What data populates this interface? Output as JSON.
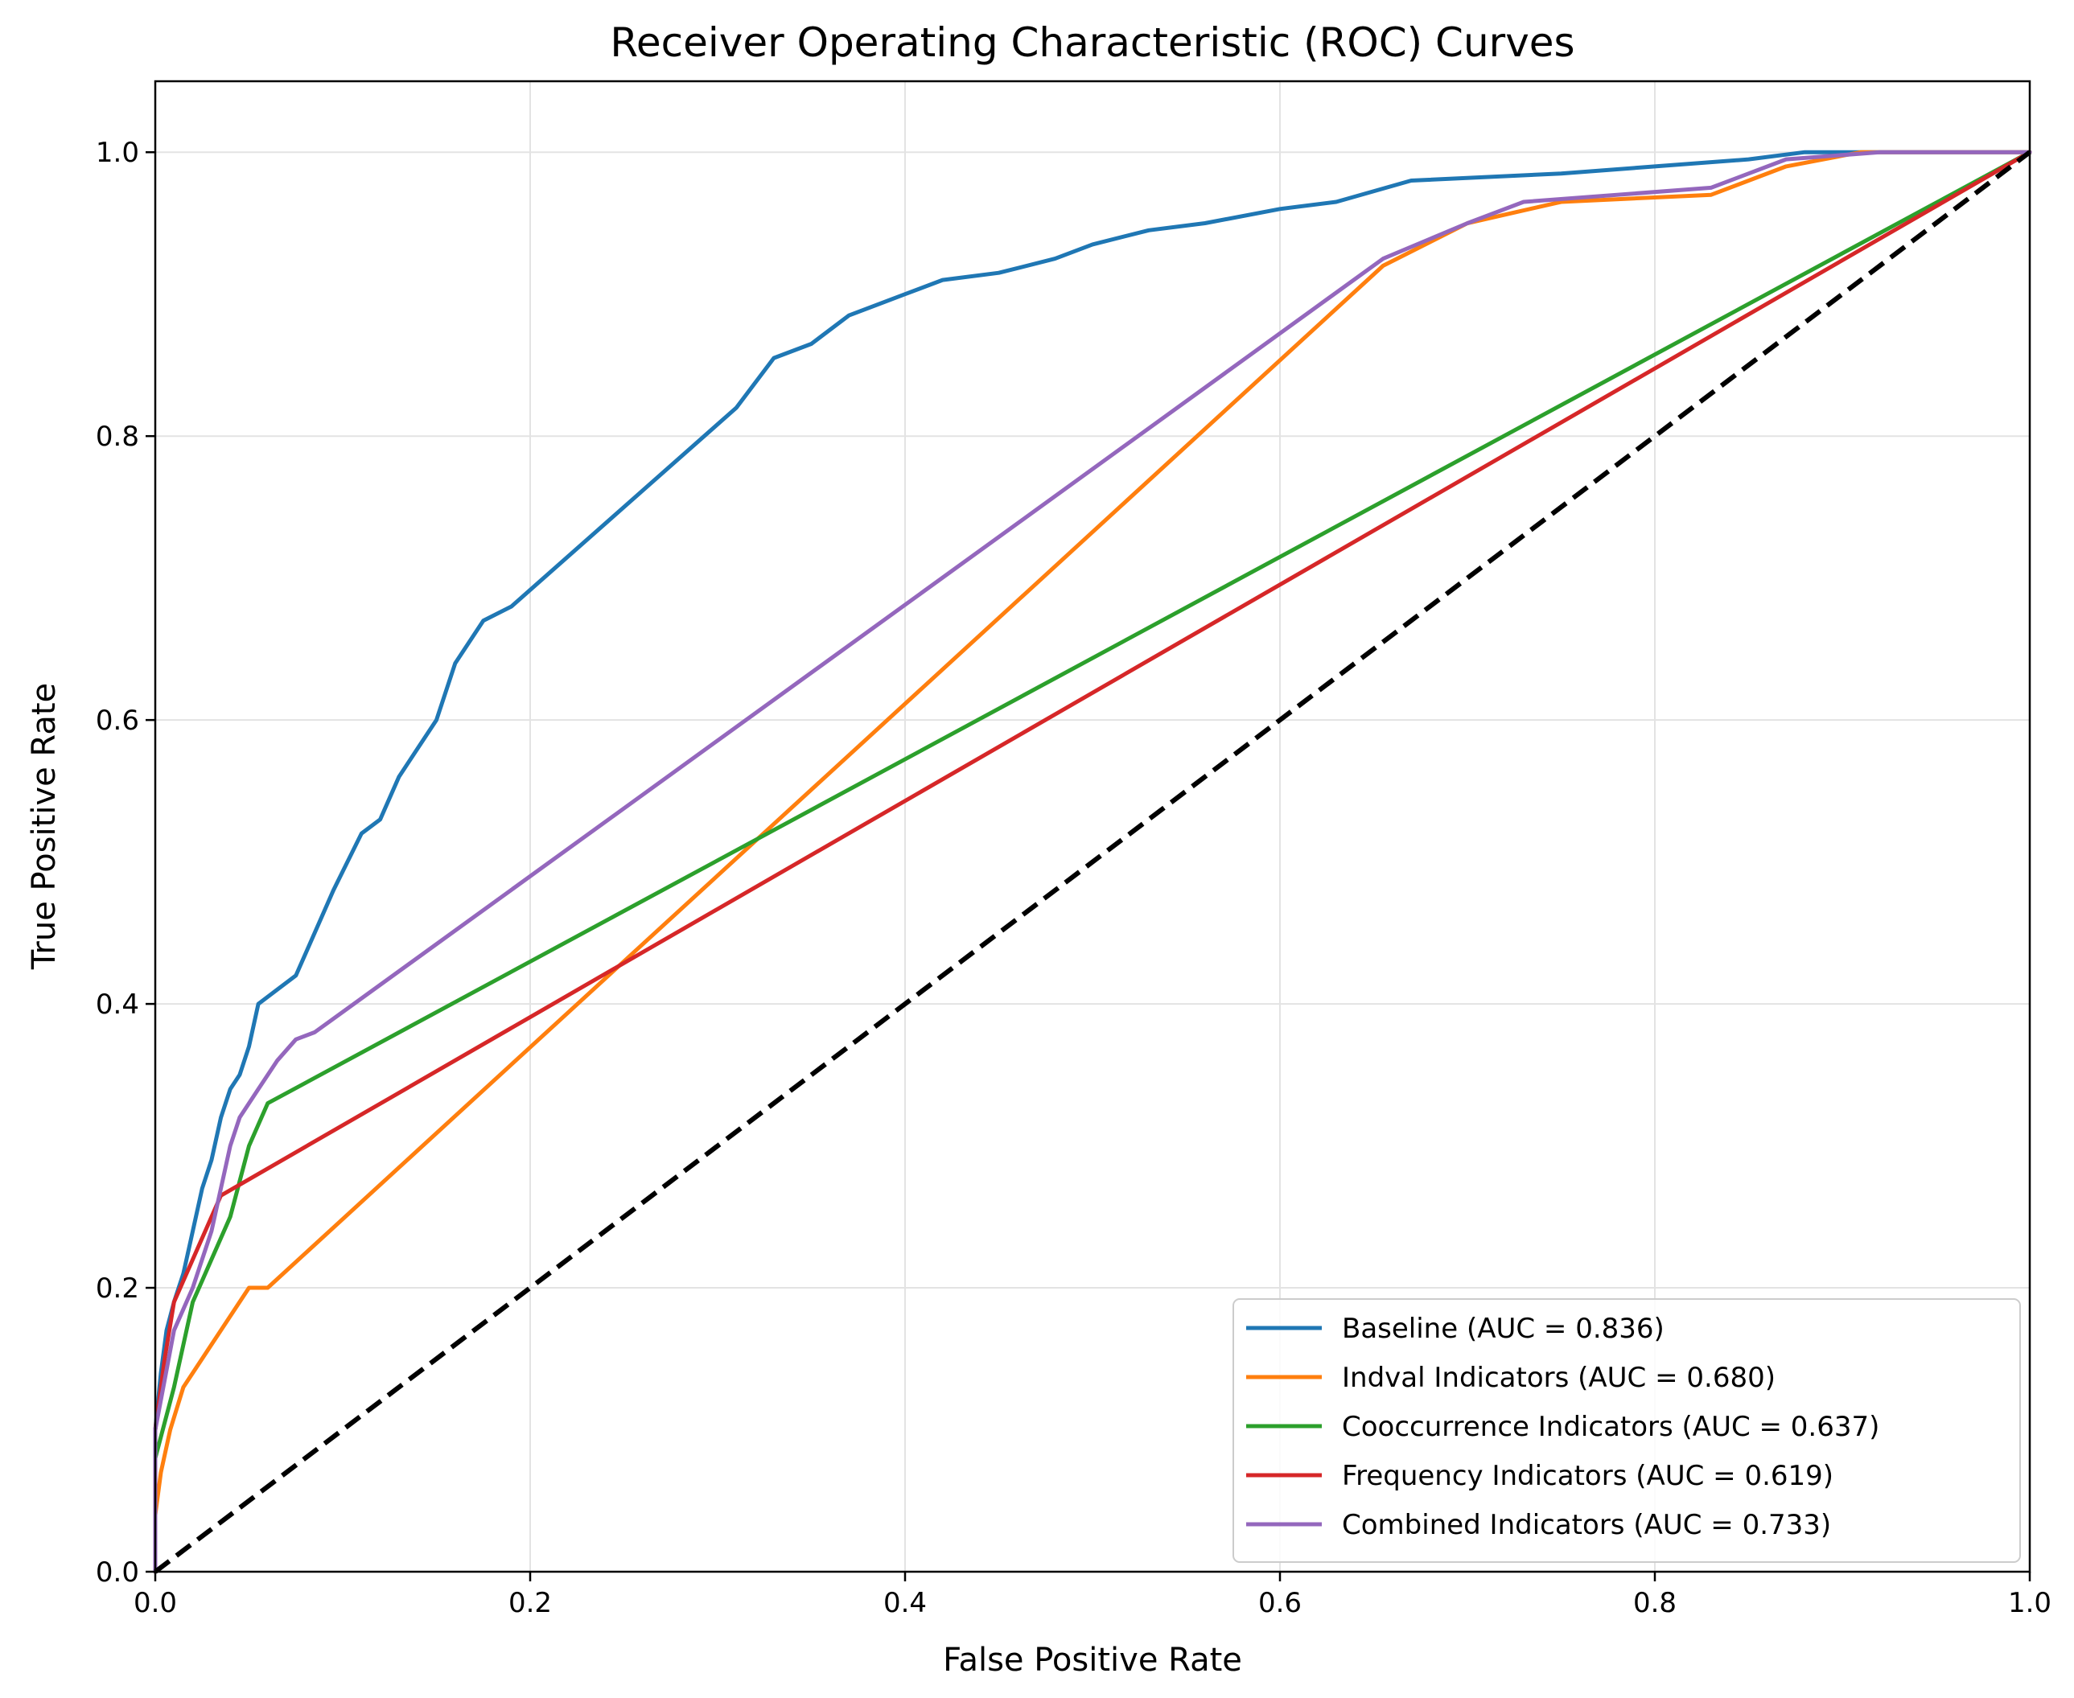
{
  "chart_data": {
    "type": "line",
    "title": "Receiver Operating Characteristic (ROC) Curves",
    "xlabel": "False Positive Rate",
    "ylabel": "True Positive Rate",
    "xlim": [
      0.0,
      1.0
    ],
    "ylim": [
      0.0,
      1.05
    ],
    "xticks": [
      "0.0",
      "0.2",
      "0.4",
      "0.6",
      "0.8",
      "1.0"
    ],
    "yticks": [
      "0.0",
      "0.2",
      "0.4",
      "0.6",
      "0.8",
      "1.0"
    ],
    "grid": true,
    "legend_position": "lower right",
    "series": [
      {
        "name": "Baseline (AUC = 0.836)",
        "color": "#1f77b4",
        "points": [
          [
            0.0,
            0.0
          ],
          [
            0.0,
            0.1
          ],
          [
            0.003,
            0.14
          ],
          [
            0.006,
            0.17
          ],
          [
            0.01,
            0.19
          ],
          [
            0.015,
            0.21
          ],
          [
            0.02,
            0.24
          ],
          [
            0.025,
            0.27
          ],
          [
            0.03,
            0.29
          ],
          [
            0.035,
            0.32
          ],
          [
            0.04,
            0.34
          ],
          [
            0.045,
            0.35
          ],
          [
            0.05,
            0.37
          ],
          [
            0.055,
            0.4
          ],
          [
            0.065,
            0.41
          ],
          [
            0.075,
            0.42
          ],
          [
            0.085,
            0.45
          ],
          [
            0.095,
            0.48
          ],
          [
            0.11,
            0.52
          ],
          [
            0.12,
            0.53
          ],
          [
            0.13,
            0.56
          ],
          [
            0.14,
            0.58
          ],
          [
            0.15,
            0.6
          ],
          [
            0.16,
            0.64
          ],
          [
            0.175,
            0.67
          ],
          [
            0.19,
            0.68
          ],
          [
            0.31,
            0.82
          ],
          [
            0.33,
            0.855
          ],
          [
            0.35,
            0.865
          ],
          [
            0.37,
            0.885
          ],
          [
            0.4,
            0.9
          ],
          [
            0.42,
            0.91
          ],
          [
            0.45,
            0.915
          ],
          [
            0.48,
            0.925
          ],
          [
            0.5,
            0.935
          ],
          [
            0.53,
            0.945
          ],
          [
            0.56,
            0.95
          ],
          [
            0.6,
            0.96
          ],
          [
            0.63,
            0.965
          ],
          [
            0.67,
            0.98
          ],
          [
            0.75,
            0.985
          ],
          [
            0.8,
            0.99
          ],
          [
            0.85,
            0.995
          ],
          [
            0.88,
            1.0
          ],
          [
            1.0,
            1.0
          ]
        ]
      },
      {
        "name": "Indval Indicators (AUC = 0.680)",
        "color": "#ff7f0e",
        "points": [
          [
            0.0,
            0.0
          ],
          [
            0.0,
            0.04
          ],
          [
            0.003,
            0.07
          ],
          [
            0.008,
            0.1
          ],
          [
            0.015,
            0.13
          ],
          [
            0.05,
            0.2
          ],
          [
            0.06,
            0.2
          ],
          [
            0.655,
            0.92
          ],
          [
            0.7,
            0.95
          ],
          [
            0.75,
            0.965
          ],
          [
            0.83,
            0.97
          ],
          [
            0.87,
            0.99
          ],
          [
            0.91,
            1.0
          ],
          [
            1.0,
            1.0
          ]
        ]
      },
      {
        "name": "Cooccurrence Indicators (AUC = 0.637)",
        "color": "#2ca02c",
        "points": [
          [
            0.0,
            0.0
          ],
          [
            0.0,
            0.08
          ],
          [
            0.01,
            0.13
          ],
          [
            0.02,
            0.19
          ],
          [
            0.03,
            0.22
          ],
          [
            0.04,
            0.25
          ],
          [
            0.05,
            0.3
          ],
          [
            0.06,
            0.33
          ],
          [
            1.0,
            1.0
          ]
        ]
      },
      {
        "name": "Frequency Indicators (AUC = 0.619)",
        "color": "#d62728",
        "points": [
          [
            0.0,
            0.0
          ],
          [
            0.0,
            0.1
          ],
          [
            0.005,
            0.15
          ],
          [
            0.01,
            0.19
          ],
          [
            0.02,
            0.22
          ],
          [
            0.035,
            0.265
          ],
          [
            1.0,
            1.0
          ]
        ]
      },
      {
        "name": "Combined Indicators (AUC = 0.733)",
        "color": "#9467bd",
        "points": [
          [
            0.0,
            0.0
          ],
          [
            0.0,
            0.1
          ],
          [
            0.01,
            0.17
          ],
          [
            0.02,
            0.2
          ],
          [
            0.03,
            0.24
          ],
          [
            0.04,
            0.3
          ],
          [
            0.045,
            0.32
          ],
          [
            0.055,
            0.34
          ],
          [
            0.065,
            0.36
          ],
          [
            0.075,
            0.375
          ],
          [
            0.085,
            0.38
          ],
          [
            0.655,
            0.925
          ],
          [
            0.7,
            0.95
          ],
          [
            0.73,
            0.965
          ],
          [
            0.83,
            0.975
          ],
          [
            0.87,
            0.995
          ],
          [
            0.92,
            1.0
          ],
          [
            1.0,
            1.0
          ]
        ]
      }
    ],
    "reference_line": {
      "color": "#000000",
      "points": [
        [
          0.0,
          0.0
        ],
        [
          1.0,
          1.0
        ]
      ]
    }
  }
}
